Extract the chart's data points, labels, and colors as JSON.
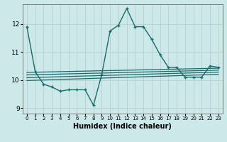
{
  "xlabel": "Humidex (Indice chaleur)",
  "bg_color": "#cce8e8",
  "line_color": "#1a6b6b",
  "grid_color": "#b0cccc",
  "xlim": [
    -0.5,
    23.5
  ],
  "ylim": [
    8.8,
    12.7
  ],
  "yticks": [
    9,
    10,
    11,
    12
  ],
  "xticks": [
    0,
    1,
    2,
    3,
    4,
    5,
    6,
    7,
    8,
    9,
    10,
    11,
    12,
    13,
    14,
    15,
    16,
    17,
    18,
    19,
    20,
    21,
    22,
    23
  ],
  "main_curve_x": [
    0,
    1,
    2,
    3,
    4,
    5,
    6,
    7,
    8,
    9,
    10,
    11,
    12,
    13,
    14,
    15,
    16,
    17,
    18,
    19,
    20,
    21,
    22,
    23
  ],
  "main_curve_y": [
    11.9,
    10.3,
    9.85,
    9.75,
    9.6,
    9.65,
    9.65,
    9.65,
    9.1,
    10.2,
    11.75,
    11.95,
    12.55,
    11.9,
    11.9,
    11.45,
    10.9,
    10.45,
    10.45,
    10.1,
    10.1,
    10.1,
    10.5,
    10.45
  ],
  "line1_x": [
    0,
    23
  ],
  "line1_y": [
    10.27,
    10.42
  ],
  "line2_x": [
    0,
    23
  ],
  "line2_y": [
    10.18,
    10.35
  ],
  "line3_x": [
    0,
    23
  ],
  "line3_y": [
    10.08,
    10.28
  ],
  "line4_x": [
    0,
    23
  ],
  "line4_y": [
    9.98,
    10.2
  ]
}
